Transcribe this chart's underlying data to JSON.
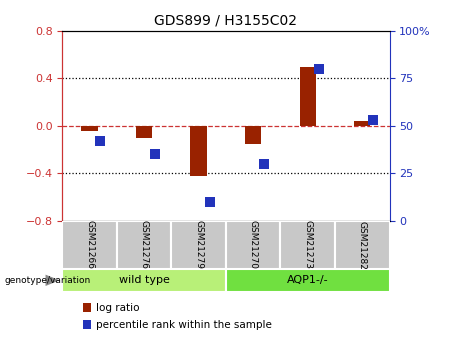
{
  "title": "GDS899 / H3155C02",
  "samples": [
    "GSM21266",
    "GSM21276",
    "GSM21279",
    "GSM21270",
    "GSM21273",
    "GSM21282"
  ],
  "log_ratios": [
    -0.04,
    -0.1,
    -0.42,
    -0.15,
    0.5,
    0.04
  ],
  "percentile_ranks": [
    42,
    35,
    10,
    30,
    80,
    53
  ],
  "ylim_left": [
    -0.8,
    0.8
  ],
  "ylim_right": [
    0,
    100
  ],
  "yticks_left": [
    -0.8,
    -0.4,
    0.0,
    0.4,
    0.8
  ],
  "yticks_right": [
    0,
    25,
    50,
    75,
    100
  ],
  "groups": [
    {
      "label": "wild type",
      "indices": [
        0,
        1,
        2
      ],
      "color": "#b8f078"
    },
    {
      "label": "AQP1-/-",
      "indices": [
        3,
        4,
        5
      ],
      "color": "#70e040"
    }
  ],
  "bar_color": "#992200",
  "dot_color": "#2233bb",
  "zero_line_color": "#cc3333",
  "dotted_line_color": "#000000",
  "sample_box_color": "#c8c8c8",
  "sample_box_edge": "#ffffff",
  "bar_width": 0.3,
  "dot_size": 45,
  "legend_log_ratio_color": "#992200",
  "legend_percentile_color": "#2233bb",
  "legend_items": [
    "log ratio",
    "percentile rank within the sample"
  ],
  "genotype_label": "genotype/variation"
}
